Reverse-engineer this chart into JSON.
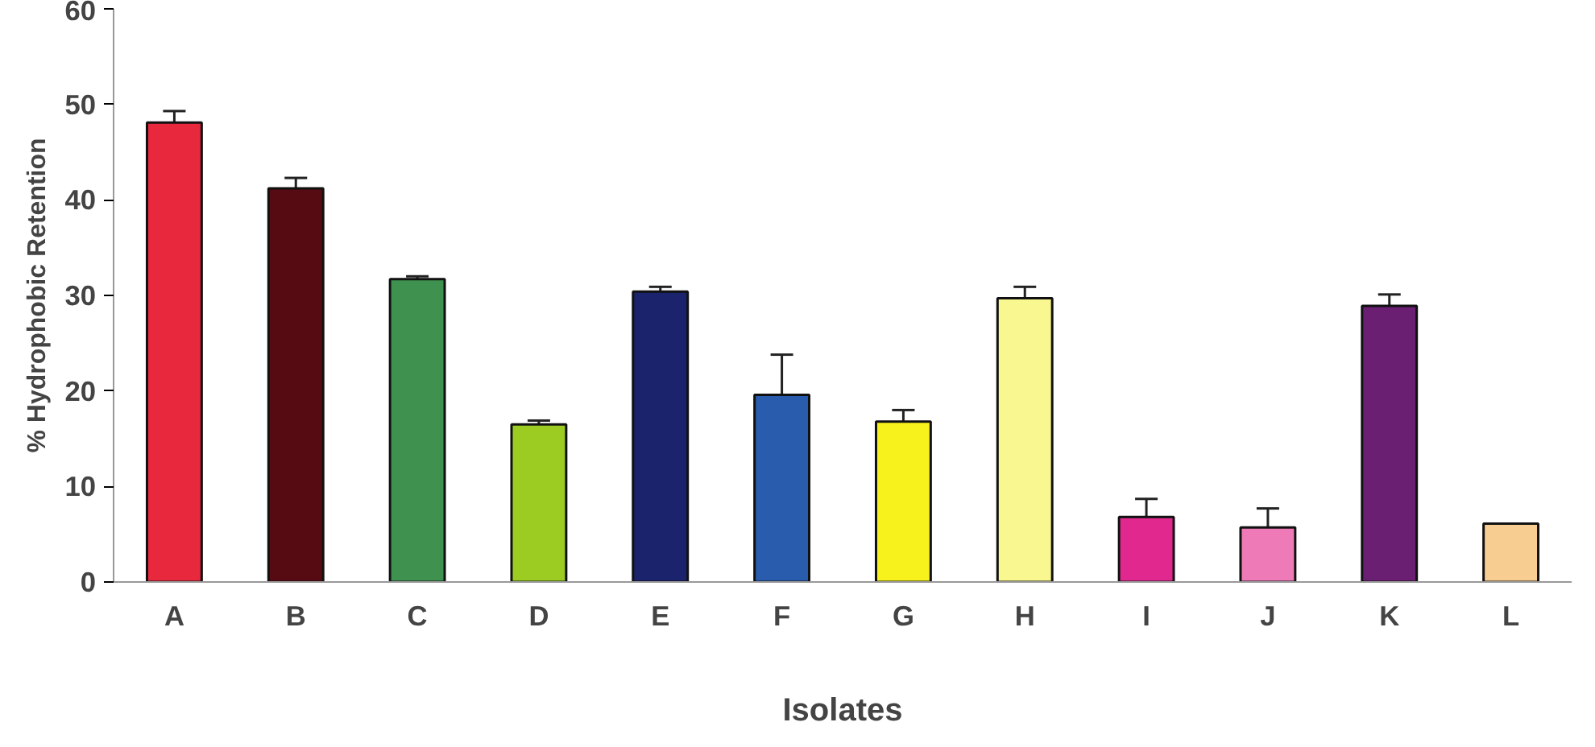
{
  "chart_data": {
    "type": "bar",
    "xlabel": "Isolates",
    "ylabel": "% Hydrophobic Retention",
    "categories": [
      "A",
      "B",
      "C",
      "D",
      "E",
      "F",
      "G",
      "H",
      "I",
      "J",
      "K",
      "L"
    ],
    "values": [
      48.1,
      41.2,
      31.7,
      16.5,
      30.4,
      19.6,
      16.8,
      29.7,
      6.8,
      5.7,
      28.9,
      6.1
    ],
    "errors": [
      1.2,
      1.1,
      0.3,
      0.4,
      0.5,
      4.2,
      1.2,
      1.2,
      1.9,
      2.0,
      1.2,
      null
    ],
    "colors": [
      "#e8283c",
      "#560a12",
      "#3f9150",
      "#9ccc22",
      "#1a236b",
      "#2a5cad",
      "#f7f21c",
      "#f9f78f",
      "#e0288e",
      "#ee7bb8",
      "#6a1f72",
      "#f8cd92"
    ],
    "ylim": [
      0,
      60
    ],
    "yticks": [
      0,
      10,
      20,
      30,
      40,
      50,
      60
    ],
    "grid": false
  }
}
